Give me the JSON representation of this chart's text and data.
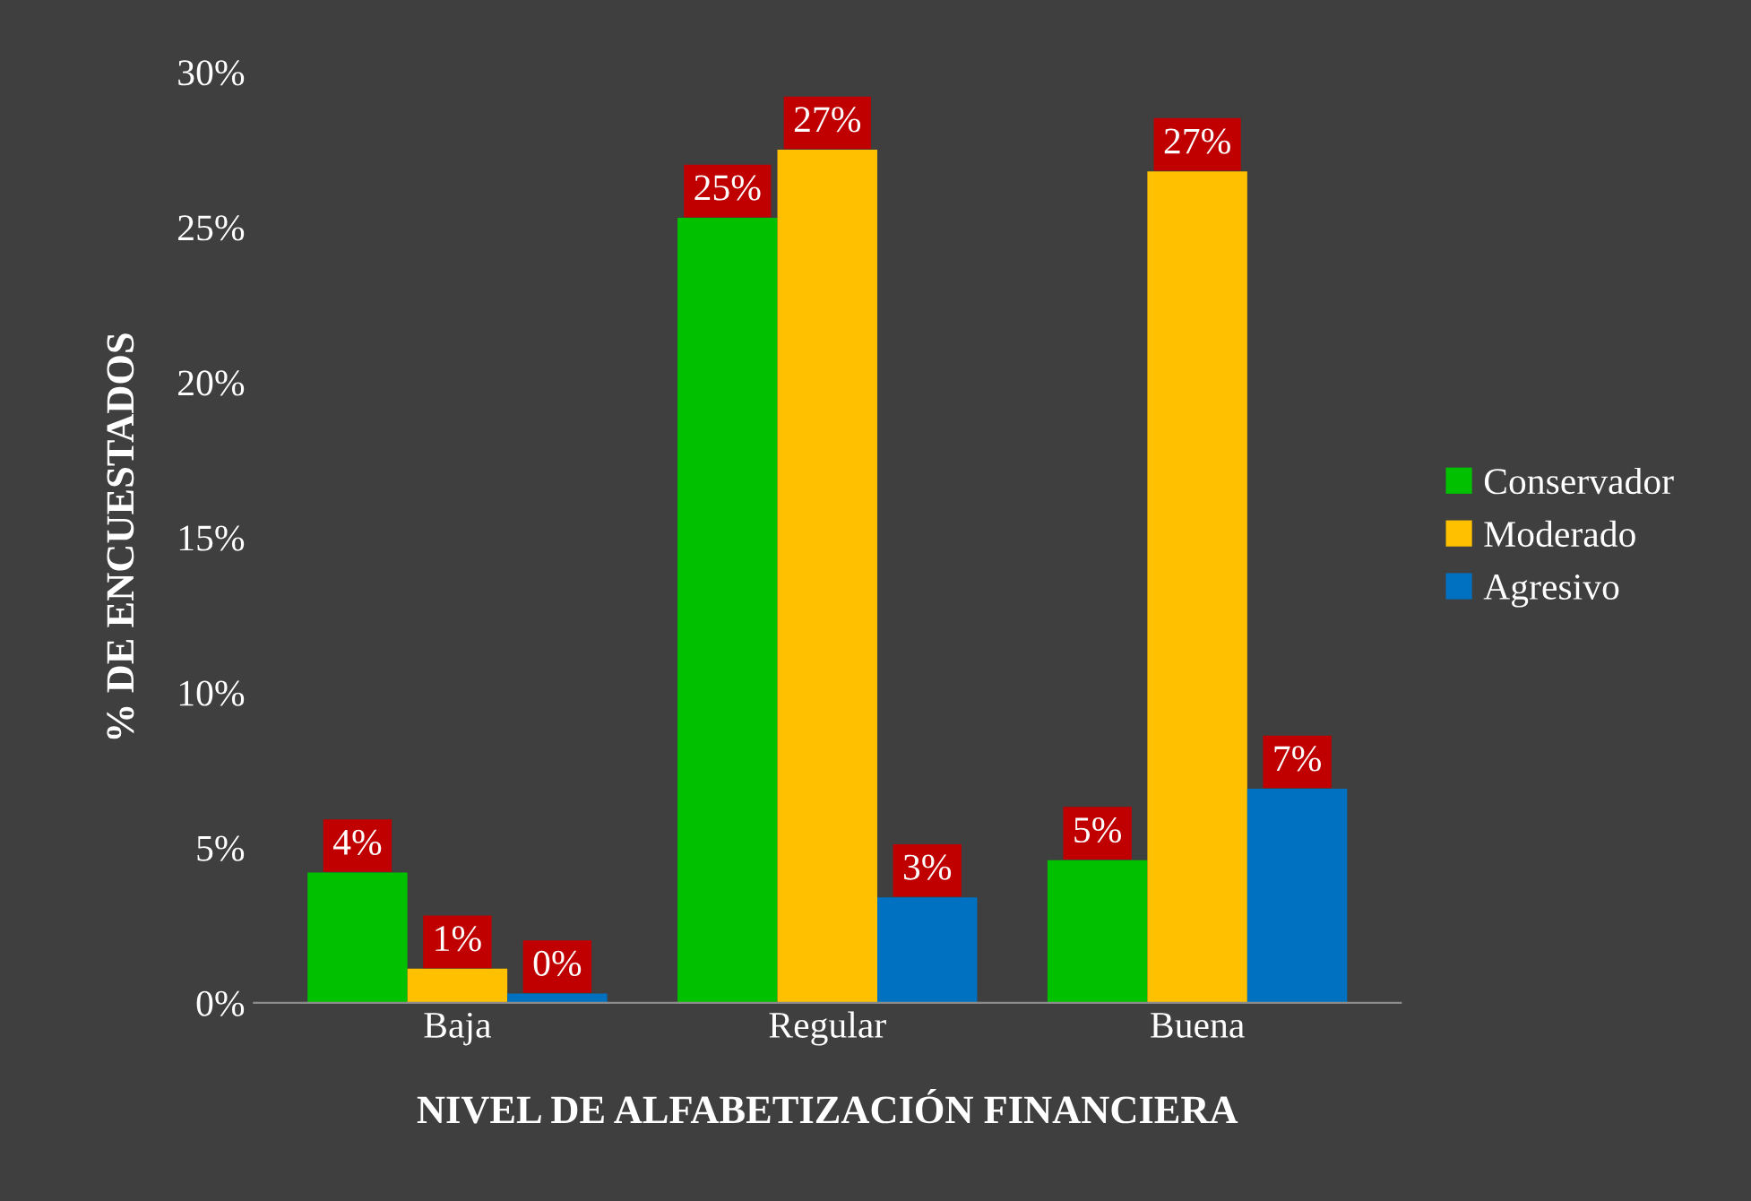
{
  "chart_data": {
    "type": "bar",
    "xlabel": "NIVEL DE ALFABETIZACIÓN FINANCIERA",
    "ylabel": "% DE ENCUESTADOS",
    "categories": [
      "Baja",
      "Regular",
      "Buena"
    ],
    "series": [
      {
        "name": "Conservador",
        "color": "#00c000",
        "values": [
          4.2,
          25.3,
          4.6
        ],
        "value_labels": [
          "4%",
          "25%",
          "5%"
        ]
      },
      {
        "name": "Moderado",
        "color": "#ffc000",
        "values": [
          1.1,
          27.5,
          26.8
        ],
        "value_labels": [
          "1%",
          "27%",
          "27%"
        ]
      },
      {
        "name": "Agresivo",
        "color": "#0070c0",
        "values": [
          0.3,
          3.4,
          6.9
        ],
        "value_labels": [
          "0%",
          "3%",
          "7%"
        ]
      }
    ],
    "ylim": [
      0,
      30
    ],
    "yticks": [
      {
        "value": 0,
        "label": "0%"
      },
      {
        "value": 5,
        "label": "5%"
      },
      {
        "value": 10,
        "label": "10%"
      },
      {
        "value": 15,
        "label": "15%"
      },
      {
        "value": 20,
        "label": "20%"
      },
      {
        "value": 25,
        "label": "25%"
      },
      {
        "value": 30,
        "label": "30%"
      }
    ],
    "grid": false,
    "legend": "right"
  }
}
